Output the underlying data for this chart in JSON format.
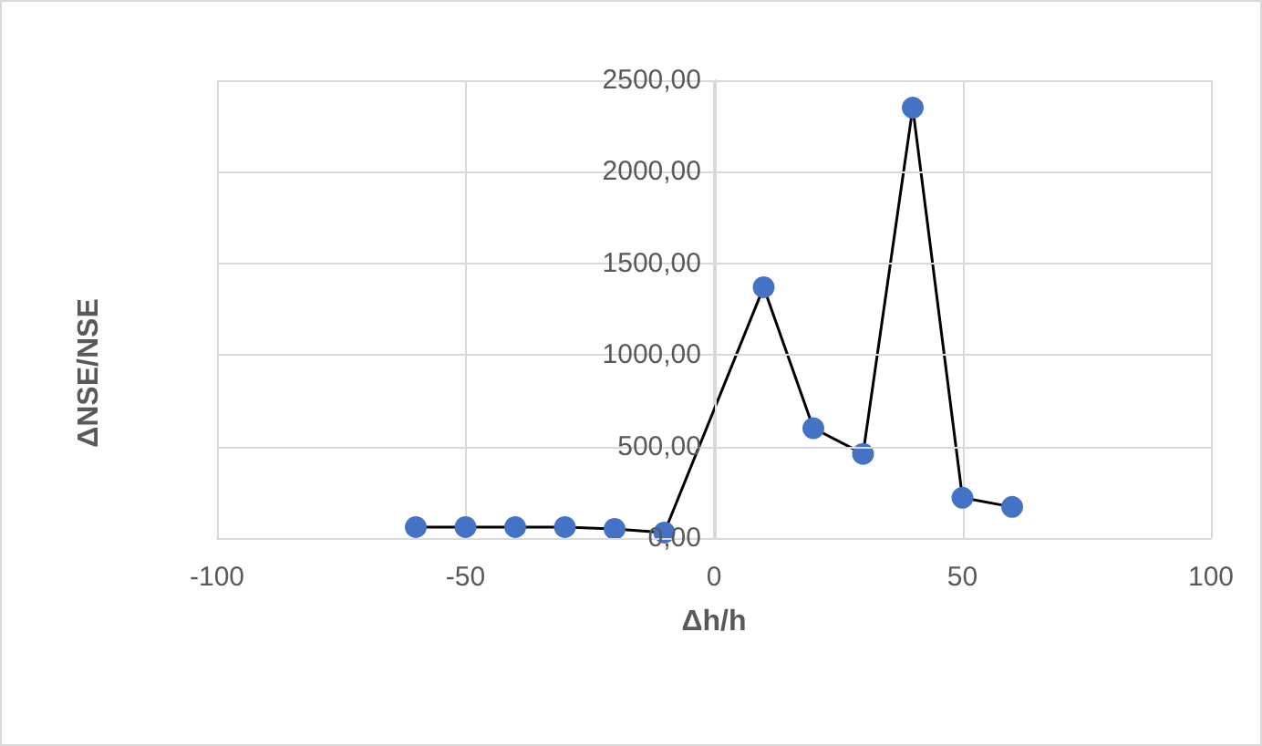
{
  "chart_data": {
    "type": "line",
    "xlabel": "Δh/h",
    "ylabel": "ΔNSE/NSE",
    "x": [
      -60,
      -50,
      -40,
      -30,
      -20,
      -10,
      10,
      20,
      30,
      40,
      50,
      60
    ],
    "series": [
      {
        "color": "#4472c4",
        "values": [
          60,
          60,
          60,
          60,
          50,
          30,
          1370,
          600,
          460,
          2350,
          220,
          170
        ]
      }
    ],
    "xlim": [
      -100,
      100
    ],
    "xticks": [
      -100,
      -50,
      0,
      50,
      100
    ],
    "ylim": [
      0,
      2500
    ],
    "yticks": [
      {
        "value": 0,
        "label": "0,00"
      },
      {
        "value": 500,
        "label": "500,00"
      },
      {
        "value": 1000,
        "label": "1000,00"
      },
      {
        "value": 1500,
        "label": "1500,00"
      },
      {
        "value": 2000,
        "label": "2000,00"
      },
      {
        "value": 2500,
        "label": "2500,00"
      }
    ],
    "grid": true,
    "marker": "circle",
    "line_style": "solid"
  }
}
